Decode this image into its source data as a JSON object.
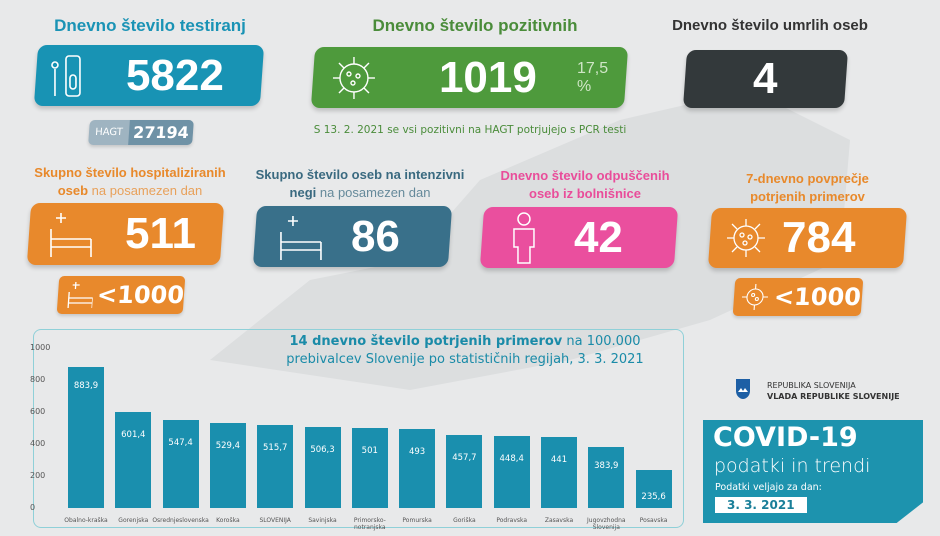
{
  "tests": {
    "title": "Dnevno število testiranj",
    "value": "5822",
    "hagt_label": "HAGT",
    "hagt_value": "27194",
    "color": "#1893b4",
    "icon": "test-kit-icon"
  },
  "positive": {
    "title": "Dnevno število pozitivnih",
    "value": "1019",
    "percent": "17,5 %",
    "note": "S 13. 2. 2021 se vsi pozitivni na HAGT potrjujejo s PCR testi",
    "color": "#4e9a3c",
    "icon": "virus-icon"
  },
  "deaths": {
    "title": "Dnevno število umrlih oseb",
    "value": "4",
    "color": "#33393b"
  },
  "hospitalized": {
    "title_bold_1": "Skupno število hospitaliziranih",
    "title_bold_2": "oseb",
    "title_rest": " na posamezen dan",
    "value": "511",
    "threshold": "<1000",
    "color": "#e8892c",
    "icon": "hospital-bed-icon"
  },
  "icu": {
    "title_bold_1": "Skupno število oseb na intenzivni",
    "title_bold_2": "negi",
    "title_rest": " na posamezen dan",
    "value": "86",
    "color": "#39708a",
    "icon": "hospital-bed-icon"
  },
  "discharged": {
    "title_1": "Dnevno število odpuščenih",
    "title_2": "oseb iz bolnišnice",
    "value": "42",
    "color": "#ea4f9e",
    "icon": "patient-icon"
  },
  "avg7": {
    "title_1": "7-dnevno povprečje",
    "title_2": "potrjenih primerov",
    "value": "784",
    "threshold": "<1000",
    "color": "#e8892c",
    "icon": "virus-icon"
  },
  "branding": {
    "line1": "REPUBLIKA SLOVENIJA",
    "line2": "VLADA REPUBLIKE SLOVENIJE",
    "covid": "COVID-19",
    "subtitle": "podatki in trendi",
    "valid_label": "Podatki veljajo za dan:",
    "date": "3. 3. 2021"
  },
  "chart_data": {
    "type": "bar",
    "title_bold": "14 dnevno število potrjenih primerov",
    "title_rest": " na 100.000",
    "title_line2": "prebivalcev Slovenije po statističnih regijah, 3. 3. 2021",
    "categories": [
      "Obalno-kraška",
      "Gorenjska",
      "Osrednjeslovenska",
      "Koroška",
      "SLOVENIJA",
      "Savinjska",
      "Primorsko-notranjska",
      "Pomurska",
      "Goriška",
      "Podravska",
      "Zasavska",
      "Jugovzhodna Slovenija",
      "Posavska"
    ],
    "values": [
      883.9,
      601.4,
      547.4,
      529.4,
      515.7,
      506.3,
      501,
      493,
      457.7,
      448.4,
      441,
      383.9,
      235.6
    ],
    "value_labels": [
      "883,9",
      "601,4",
      "547,4",
      "529,4",
      "515,7",
      "506,3",
      "501",
      "493",
      "457,7",
      "448,4",
      "441",
      "383,9",
      "235,6"
    ],
    "ylim": [
      0,
      1000
    ],
    "yticks": [
      "0",
      "200",
      "400",
      "600",
      "800",
      "1000"
    ],
    "grid": false,
    "color": "#1a8fae"
  }
}
